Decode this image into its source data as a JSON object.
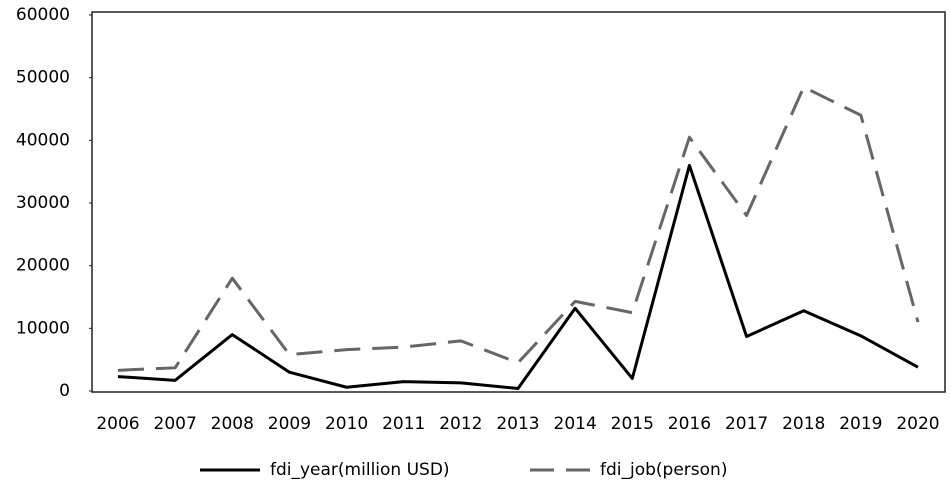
{
  "chart_data": {
    "type": "line",
    "categories": [
      "2006",
      "2007",
      "2008",
      "2009",
      "2010",
      "2011",
      "2012",
      "2013",
      "2014",
      "2015",
      "2016",
      "2017",
      "2018",
      "2019",
      "2020"
    ],
    "series": [
      {
        "name": "fdi_year(million USD)",
        "color": "#000000",
        "dashed": false,
        "values": [
          2300,
          1700,
          9000,
          3000,
          600,
          1500,
          1300,
          400,
          13200,
          2000,
          36000,
          8700,
          12800,
          8800,
          3800
        ]
      },
      {
        "name": "fdi_job(person)",
        "color": "#666666",
        "dashed": true,
        "values": [
          3300,
          3700,
          18000,
          5800,
          6600,
          7000,
          8000,
          4500,
          14300,
          12500,
          40500,
          28000,
          48500,
          44000,
          11000
        ]
      }
    ],
    "ylim": [
      0,
      60000
    ],
    "yticks": [
      0,
      10000,
      20000,
      30000,
      40000,
      50000,
      60000
    ],
    "legend": "bottom"
  }
}
